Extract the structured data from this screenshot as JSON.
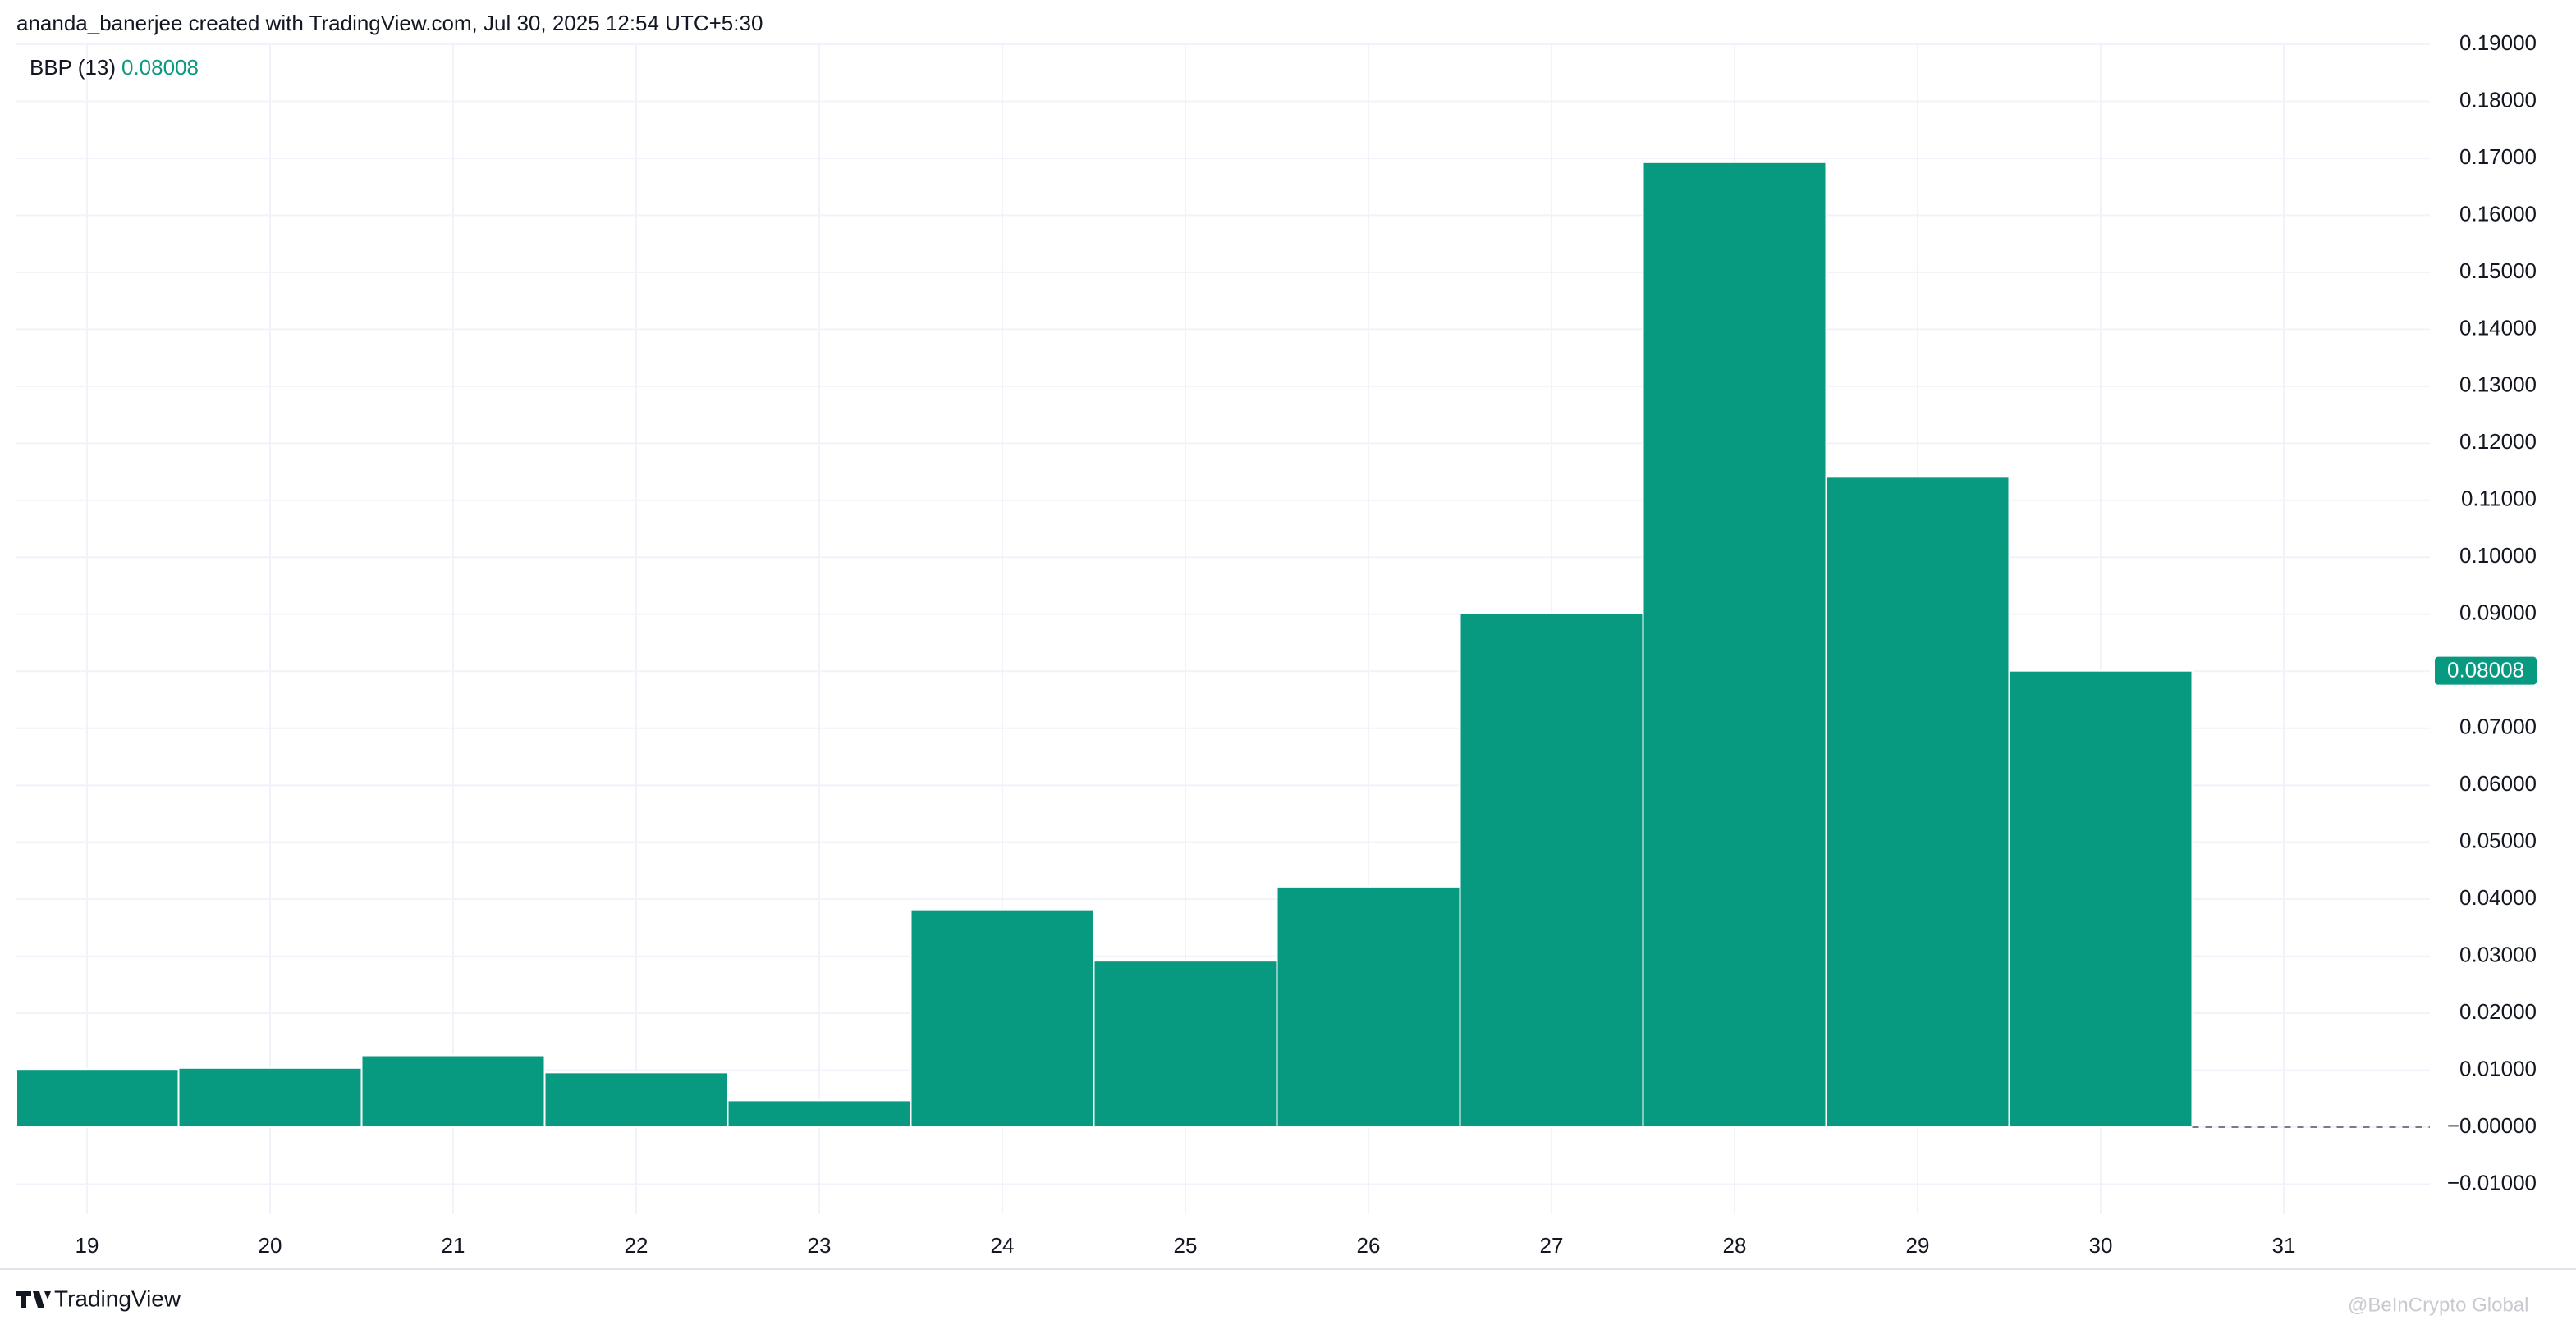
{
  "header": {
    "title": "ananda_banerjee created with TradingView.com, Jul 30, 2025 12:54 UTC+5:30"
  },
  "legend": {
    "name": "BBP (13)"
  },
  "footer": {
    "brand": "TradingView",
    "watermark": "@BeInCrypto Global"
  },
  "chart_data": {
    "type": "bar",
    "color": "#089981",
    "grid": true,
    "categories": [
      "19",
      "20",
      "21",
      "22",
      "23",
      "24",
      "25",
      "26",
      "27",
      "28",
      "29",
      "30",
      "31"
    ],
    "values": [
      0.0102,
      0.0104,
      0.0126,
      0.0096,
      0.0047,
      0.0382,
      0.0292,
      0.0422,
      0.0902,
      0.1693,
      0.1141,
      0.08008,
      null
    ],
    "ylim": [
      -0.01525,
      0.19
    ],
    "yticks": [
      {
        "value": -0.01,
        "label": "−0.01000"
      },
      {
        "value": 0,
        "label": "−0.00000"
      },
      {
        "value": 0.01,
        "label": "0.01000"
      },
      {
        "value": 0.02,
        "label": "0.02000"
      },
      {
        "value": 0.03,
        "label": "0.03000"
      },
      {
        "value": 0.04,
        "label": "0.04000"
      },
      {
        "value": 0.05,
        "label": "0.05000"
      },
      {
        "value": 0.06,
        "label": "0.06000"
      },
      {
        "value": 0.07,
        "label": "0.07000"
      },
      {
        "value": 0.08,
        "label": "0.08000"
      },
      {
        "value": 0.09,
        "label": "0.09000"
      },
      {
        "value": 0.1,
        "label": "0.10000"
      },
      {
        "value": 0.11,
        "label": "0.11000"
      },
      {
        "value": 0.12,
        "label": "0.12000"
      },
      {
        "value": 0.13,
        "label": "0.13000"
      },
      {
        "value": 0.14,
        "label": "0.14000"
      },
      {
        "value": 0.15,
        "label": "0.15000"
      },
      {
        "value": 0.16,
        "label": "0.16000"
      },
      {
        "value": 0.17,
        "label": "0.17000"
      },
      {
        "value": 0.18,
        "label": "0.18000"
      },
      {
        "value": 0.19,
        "label": "0.19000"
      }
    ]
  }
}
